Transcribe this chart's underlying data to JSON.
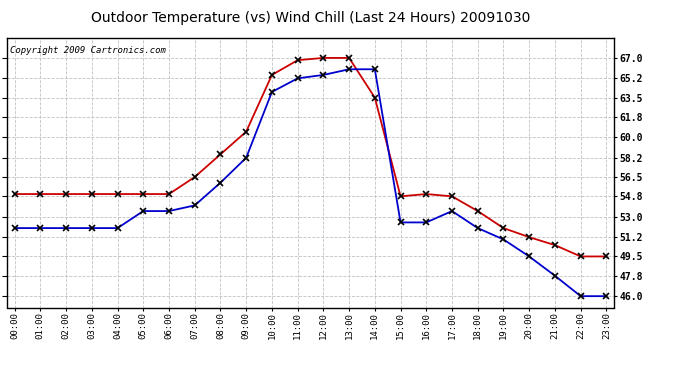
{
  "title": "Outdoor Temperature (vs) Wind Chill (Last 24 Hours) 20091030",
  "copyright": "Copyright 2009 Cartronics.com",
  "hours": [
    "00:00",
    "01:00",
    "02:00",
    "03:00",
    "04:00",
    "05:00",
    "06:00",
    "07:00",
    "08:00",
    "09:00",
    "10:00",
    "11:00",
    "12:00",
    "13:00",
    "14:00",
    "15:00",
    "16:00",
    "17:00",
    "18:00",
    "19:00",
    "20:00",
    "21:00",
    "22:00",
    "23:00"
  ],
  "temp": [
    55.0,
    55.0,
    55.0,
    55.0,
    55.0,
    55.0,
    55.0,
    56.5,
    58.5,
    60.5,
    65.5,
    66.8,
    67.0,
    67.0,
    63.5,
    54.8,
    55.0,
    54.8,
    53.5,
    52.0,
    51.2,
    50.5,
    49.5,
    49.5
  ],
  "wind_chill": [
    52.0,
    52.0,
    52.0,
    52.0,
    52.0,
    53.5,
    53.5,
    54.0,
    56.0,
    58.2,
    64.0,
    65.2,
    65.5,
    66.0,
    66.0,
    52.5,
    52.5,
    53.5,
    52.0,
    51.0,
    49.5,
    47.8,
    46.0,
    46.0
  ],
  "temp_color": "#cc0000",
  "wind_chill_color": "#0000cc",
  "ylim_min": 45.0,
  "ylim_max": 68.8,
  "yticks": [
    46.0,
    47.8,
    49.5,
    51.2,
    53.0,
    54.8,
    56.5,
    58.2,
    60.0,
    61.8,
    63.5,
    65.2,
    67.0
  ],
  "background_color": "#ffffff",
  "plot_bg_color": "#ffffff",
  "grid_color": "#bbbbbb",
  "title_fontsize": 10,
  "copyright_fontsize": 6.5
}
